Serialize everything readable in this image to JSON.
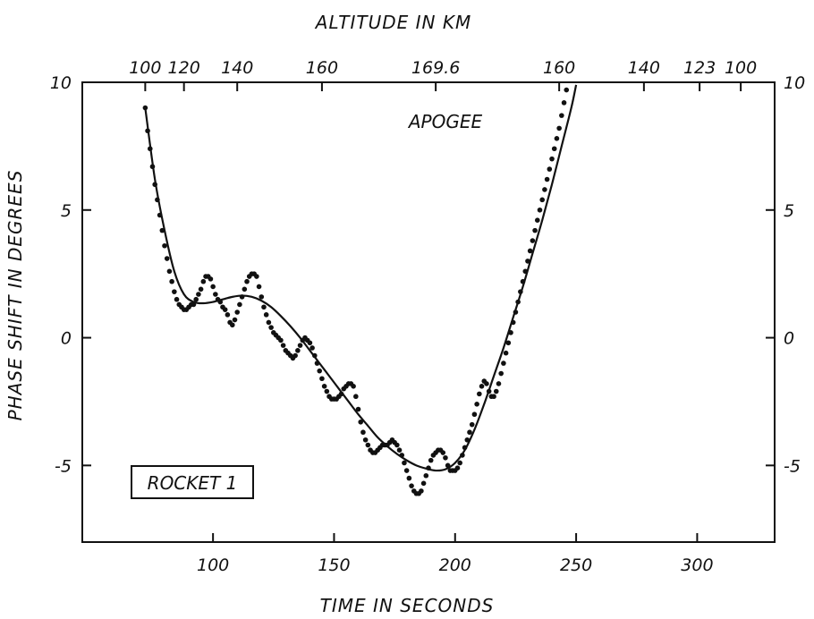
{
  "chart_data": {
    "type": "scatter",
    "title": "",
    "xlabel": "TIME IN SECONDS",
    "ylabel": "PHASE SHIFT IN DEGREES",
    "top_axis_label": "ALTITUDE IN KM",
    "xlim": [
      46,
      332
    ],
    "ylim": [
      -8,
      10
    ],
    "x_ticks": [
      100,
      150,
      200,
      250,
      300
    ],
    "x_tick_labels": [
      "100",
      "150",
      "200",
      "250",
      "300"
    ],
    "y_ticks": [
      -5,
      0,
      5,
      10
    ],
    "y_tick_labels": [
      "-5",
      "0",
      "5",
      "10"
    ],
    "top_ticks": [
      {
        "t": 72,
        "label": "100"
      },
      {
        "t": 88,
        "label": "120"
      },
      {
        "t": 110,
        "label": "140"
      },
      {
        "t": 145,
        "label": "160"
      },
      {
        "t": 192,
        "label": "169.6"
      },
      {
        "t": 243,
        "label": "160"
      },
      {
        "t": 278,
        "label": "140"
      },
      {
        "t": 301,
        "label": "123"
      },
      {
        "t": 318,
        "label": "100"
      }
    ],
    "annotations": {
      "apogee": "APOGEE",
      "rocket": "ROCKET 1"
    },
    "grid": false,
    "series": [
      {
        "style": "dots",
        "points": [
          [
            72,
            9.0
          ],
          [
            73,
            8.1
          ],
          [
            74,
            7.4
          ],
          [
            75,
            6.7
          ],
          [
            76,
            6.0
          ],
          [
            77,
            5.4
          ],
          [
            78,
            4.8
          ],
          [
            79,
            4.2
          ],
          [
            80,
            3.6
          ],
          [
            81,
            3.1
          ],
          [
            82,
            2.6
          ],
          [
            83,
            2.2
          ],
          [
            84,
            1.8
          ],
          [
            85,
            1.5
          ],
          [
            86,
            1.3
          ],
          [
            87,
            1.2
          ],
          [
            88,
            1.1
          ],
          [
            89,
            1.1
          ],
          [
            90,
            1.2
          ],
          [
            91,
            1.3
          ],
          [
            92,
            1.3
          ],
          [
            93,
            1.5
          ],
          [
            94,
            1.7
          ],
          [
            95,
            1.9
          ],
          [
            96,
            2.2
          ],
          [
            97,
            2.4
          ],
          [
            98,
            2.4
          ],
          [
            99,
            2.3
          ],
          [
            100,
            2.0
          ],
          [
            101,
            1.7
          ],
          [
            102,
            1.5
          ],
          [
            103,
            1.4
          ],
          [
            104,
            1.2
          ],
          [
            105,
            1.1
          ],
          [
            106,
            0.9
          ],
          [
            107,
            0.6
          ],
          [
            108,
            0.5
          ],
          [
            109,
            0.7
          ],
          [
            110,
            1.0
          ],
          [
            111,
            1.3
          ],
          [
            112,
            1.6
          ],
          [
            113,
            1.9
          ],
          [
            114,
            2.2
          ],
          [
            115,
            2.4
          ],
          [
            116,
            2.5
          ],
          [
            117,
            2.5
          ],
          [
            118,
            2.4
          ],
          [
            119,
            2.0
          ],
          [
            120,
            1.6
          ],
          [
            121,
            1.2
          ],
          [
            122,
            0.9
          ],
          [
            123,
            0.6
          ],
          [
            124,
            0.4
          ],
          [
            125,
            0.2
          ],
          [
            126,
            0.1
          ],
          [
            127,
            0.0
          ],
          [
            128,
            -0.1
          ],
          [
            129,
            -0.3
          ],
          [
            130,
            -0.5
          ],
          [
            131,
            -0.6
          ],
          [
            132,
            -0.7
          ],
          [
            133,
            -0.8
          ],
          [
            134,
            -0.7
          ],
          [
            135,
            -0.5
          ],
          [
            136,
            -0.3
          ],
          [
            137,
            -0.1
          ],
          [
            138,
            0.0
          ],
          [
            139,
            -0.1
          ],
          [
            140,
            -0.2
          ],
          [
            141,
            -0.4
          ],
          [
            142,
            -0.7
          ],
          [
            143,
            -1.0
          ],
          [
            144,
            -1.3
          ],
          [
            145,
            -1.6
          ],
          [
            146,
            -1.9
          ],
          [
            147,
            -2.1
          ],
          [
            148,
            -2.3
          ],
          [
            149,
            -2.4
          ],
          [
            150,
            -2.4
          ],
          [
            151,
            -2.4
          ],
          [
            152,
            -2.3
          ],
          [
            153,
            -2.2
          ],
          [
            154,
            -2.0
          ],
          [
            155,
            -1.9
          ],
          [
            156,
            -1.8
          ],
          [
            157,
            -1.8
          ],
          [
            158,
            -1.9
          ],
          [
            159,
            -2.3
          ],
          [
            160,
            -2.8
          ],
          [
            161,
            -3.3
          ],
          [
            162,
            -3.7
          ],
          [
            163,
            -4.0
          ],
          [
            164,
            -4.2
          ],
          [
            165,
            -4.4
          ],
          [
            166,
            -4.5
          ],
          [
            167,
            -4.5
          ],
          [
            168,
            -4.4
          ],
          [
            169,
            -4.3
          ],
          [
            170,
            -4.2
          ],
          [
            171,
            -4.2
          ],
          [
            172,
            -4.2
          ],
          [
            173,
            -4.1
          ],
          [
            174,
            -4.0
          ],
          [
            175,
            -4.1
          ],
          [
            176,
            -4.2
          ],
          [
            177,
            -4.4
          ],
          [
            178,
            -4.6
          ],
          [
            179,
            -4.9
          ],
          [
            180,
            -5.2
          ],
          [
            181,
            -5.5
          ],
          [
            182,
            -5.8
          ],
          [
            183,
            -6.0
          ],
          [
            184,
            -6.1
          ],
          [
            185,
            -6.1
          ],
          [
            186,
            -6.0
          ],
          [
            187,
            -5.7
          ],
          [
            188,
            -5.4
          ],
          [
            189,
            -5.1
          ],
          [
            190,
            -4.8
          ],
          [
            191,
            -4.6
          ],
          [
            192,
            -4.5
          ],
          [
            193,
            -4.4
          ],
          [
            194,
            -4.4
          ],
          [
            195,
            -4.5
          ],
          [
            196,
            -4.7
          ],
          [
            197,
            -5.0
          ],
          [
            198,
            -5.2
          ],
          [
            199,
            -5.2
          ],
          [
            200,
            -5.2
          ],
          [
            201,
            -5.1
          ],
          [
            202,
            -4.9
          ],
          [
            203,
            -4.6
          ],
          [
            204,
            -4.3
          ],
          [
            205,
            -4.0
          ],
          [
            206,
            -3.7
          ],
          [
            207,
            -3.4
          ],
          [
            208,
            -3.0
          ],
          [
            209,
            -2.6
          ],
          [
            210,
            -2.2
          ],
          [
            211,
            -1.9
          ],
          [
            212,
            -1.7
          ],
          [
            213,
            -1.8
          ],
          [
            214,
            -2.1
          ],
          [
            215,
            -2.3
          ],
          [
            216,
            -2.3
          ],
          [
            217,
            -2.1
          ],
          [
            218,
            -1.8
          ],
          [
            219,
            -1.4
          ],
          [
            220,
            -1.0
          ],
          [
            221,
            -0.6
          ],
          [
            222,
            -0.2
          ],
          [
            223,
            0.2
          ],
          [
            224,
            0.6
          ],
          [
            225,
            1.0
          ],
          [
            226,
            1.4
          ],
          [
            227,
            1.8
          ],
          [
            228,
            2.2
          ],
          [
            229,
            2.6
          ],
          [
            230,
            3.0
          ],
          [
            231,
            3.4
          ],
          [
            232,
            3.8
          ],
          [
            233,
            4.2
          ],
          [
            234,
            4.6
          ],
          [
            235,
            5.0
          ],
          [
            236,
            5.4
          ],
          [
            237,
            5.8
          ],
          [
            238,
            6.2
          ],
          [
            239,
            6.6
          ],
          [
            240,
            7.0
          ],
          [
            241,
            7.4
          ],
          [
            242,
            7.8
          ],
          [
            243,
            8.2
          ],
          [
            244,
            8.7
          ],
          [
            245,
            9.2
          ],
          [
            246,
            9.7
          ]
        ]
      },
      {
        "style": "line",
        "points": [
          [
            72,
            9.0
          ],
          [
            76,
            6.2
          ],
          [
            80,
            4.2
          ],
          [
            84,
            2.6
          ],
          [
            88,
            1.7
          ],
          [
            92,
            1.4
          ],
          [
            96,
            1.35
          ],
          [
            100,
            1.4
          ],
          [
            104,
            1.5
          ],
          [
            108,
            1.6
          ],
          [
            112,
            1.65
          ],
          [
            116,
            1.6
          ],
          [
            120,
            1.45
          ],
          [
            124,
            1.2
          ],
          [
            128,
            0.85
          ],
          [
            132,
            0.45
          ],
          [
            136,
            0.0
          ],
          [
            140,
            -0.5
          ],
          [
            144,
            -1.0
          ],
          [
            148,
            -1.5
          ],
          [
            152,
            -2.0
          ],
          [
            156,
            -2.5
          ],
          [
            160,
            -3.0
          ],
          [
            164,
            -3.45
          ],
          [
            168,
            -3.9
          ],
          [
            172,
            -4.25
          ],
          [
            176,
            -4.55
          ],
          [
            180,
            -4.8
          ],
          [
            184,
            -5.0
          ],
          [
            188,
            -5.12
          ],
          [
            192,
            -5.2
          ],
          [
            196,
            -5.15
          ],
          [
            200,
            -4.9
          ],
          [
            204,
            -4.4
          ],
          [
            208,
            -3.6
          ],
          [
            212,
            -2.6
          ],
          [
            216,
            -1.5
          ],
          [
            220,
            -0.4
          ],
          [
            224,
            0.8
          ],
          [
            228,
            2.0
          ],
          [
            232,
            3.3
          ],
          [
            236,
            4.6
          ],
          [
            240,
            6.0
          ],
          [
            244,
            7.5
          ],
          [
            248,
            9.0
          ],
          [
            250,
            9.9
          ]
        ]
      }
    ]
  }
}
